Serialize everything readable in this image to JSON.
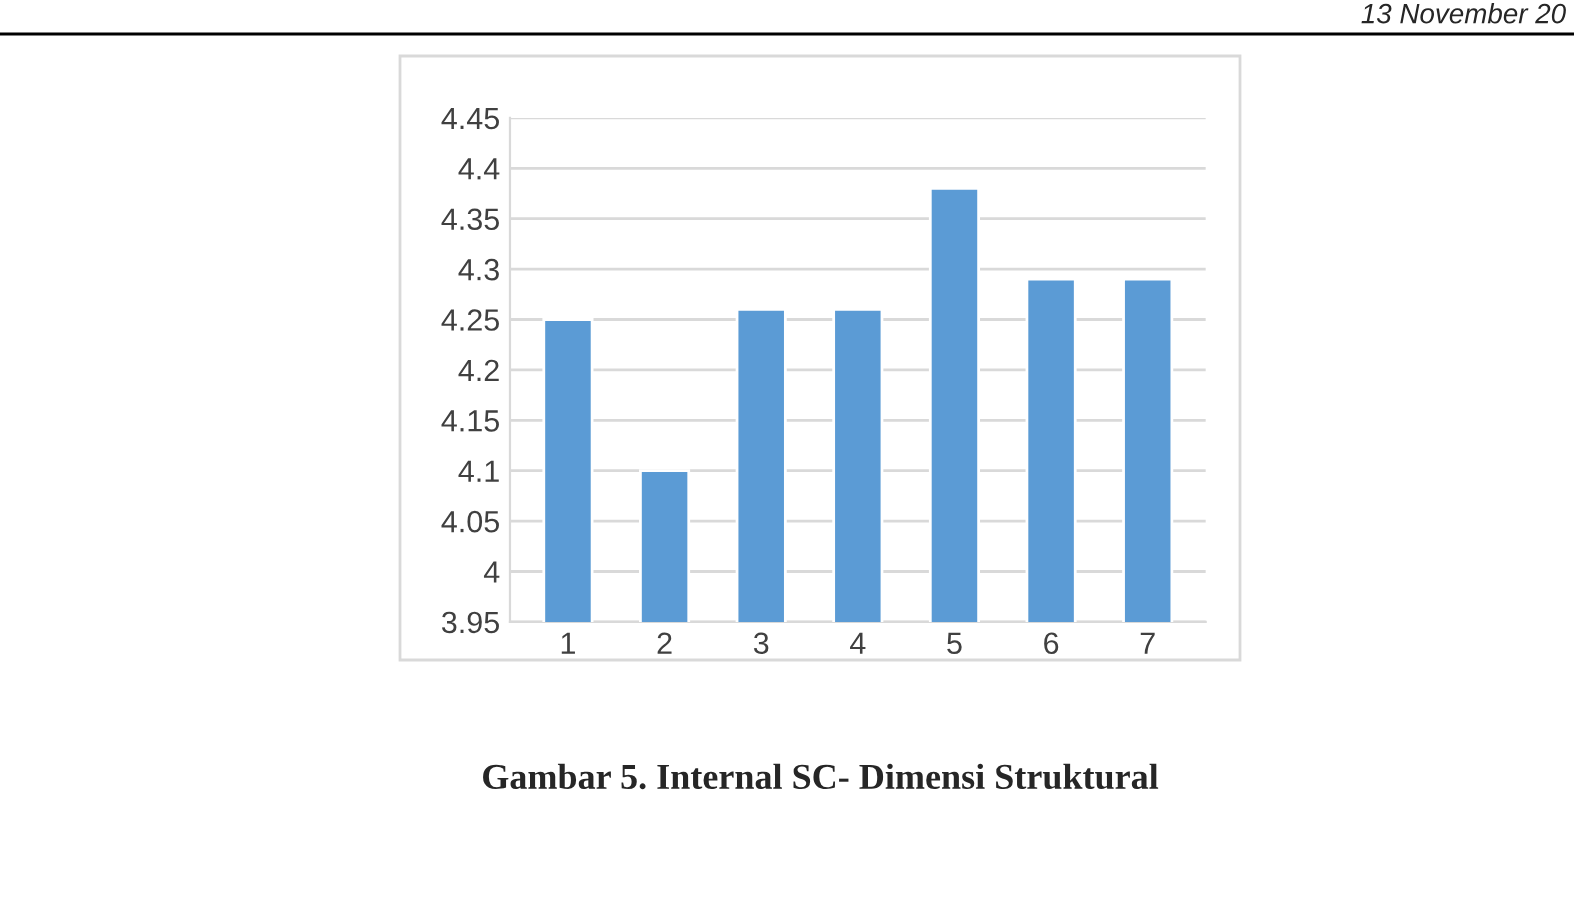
{
  "chart_data": {
    "type": "bar",
    "title": "Gambar 5. Internal SC- Dimensi Struktural",
    "annotations": [
      "13 November 20"
    ],
    "categories": [
      "1",
      "2",
      "3",
      "4",
      "5",
      "6",
      "7"
    ],
    "values": [
      4.25,
      4.1,
      4.26,
      4.26,
      4.38,
      4.29,
      4.29
    ],
    "color": "#5b9bd5",
    "ylim": [
      3.95,
      4.45
    ],
    "yticks": [
      3.95,
      4,
      4.05,
      4.1,
      4.15,
      4.2,
      4.25,
      4.3,
      4.35,
      4.4,
      4.45
    ],
    "grid": "y",
    "legend": false
  }
}
